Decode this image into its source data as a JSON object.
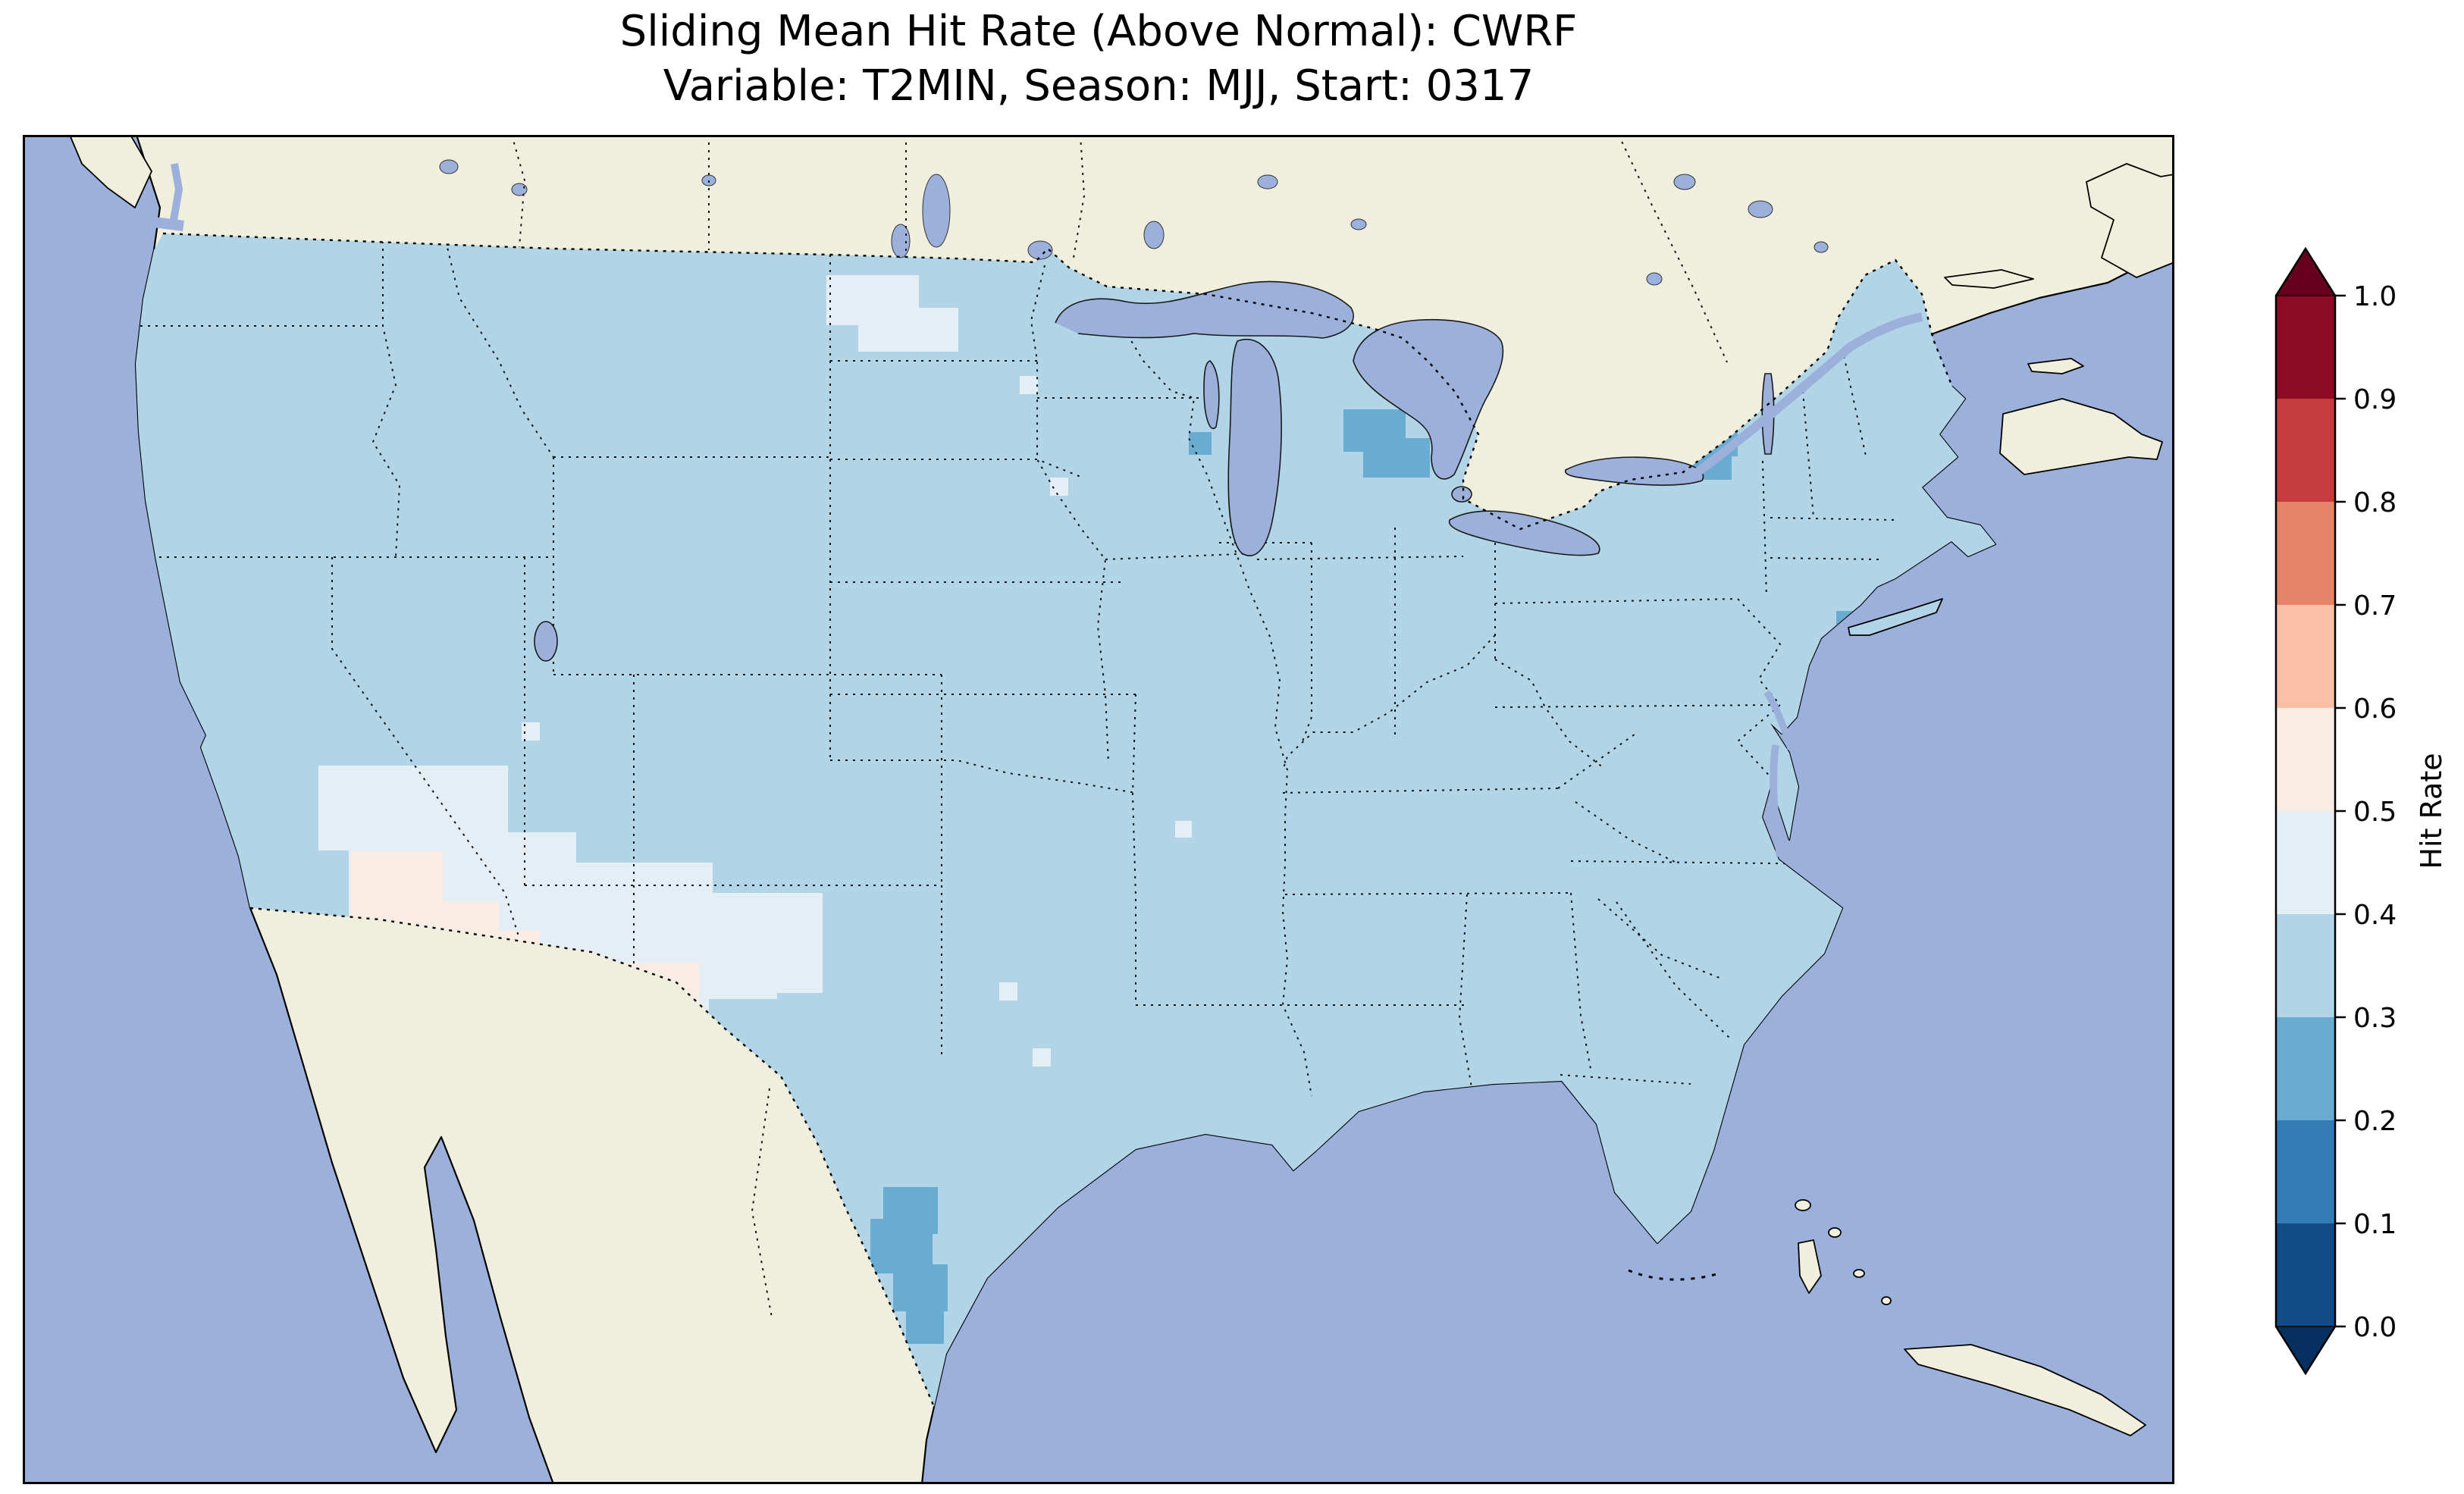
{
  "title": {
    "line1": "Sliding Mean Hit Rate (Above Normal): CWRF",
    "line2": "Variable: T2MIN, Season: MJJ, Start: 0317"
  },
  "colorbar": {
    "label": "Hit Rate",
    "tick_labels": [
      "1.0",
      "0.9",
      "0.8",
      "0.7",
      "0.6",
      "0.5",
      "0.4",
      "0.3",
      "0.2",
      "0.1",
      "0.0"
    ],
    "bin_colors_low_to_high": [
      "#134b87",
      "#327db8",
      "#6aacd1",
      "#b1d5e7",
      "#e4eef4",
      "#f9ece3",
      "#f9c0a5",
      "#e58368",
      "#c43c3c",
      "#8d0c25"
    ],
    "extend_low_color": "#053061",
    "extend_high_color": "#67001f"
  },
  "colors": {
    "ocean": "#9cb0dc",
    "land": "#f0eedc",
    "bin_0_2_0_3": "#6aacd1",
    "bin_0_3_0_4": "#b1d5e7",
    "bin_0_4_0_5": "#e4eef4",
    "bin_0_5_0_6": "#f9ece3"
  },
  "chart_data": {
    "type": "heatmap",
    "title": "Sliding Mean Hit Rate (Above Normal): CWRF",
    "subtitle": "Variable: T2MIN, Season: MJJ, Start: 0317",
    "model": "CWRF",
    "variable": "T2MIN",
    "season": "MJJ",
    "start": "0317",
    "metric": "Hit Rate",
    "map_extent": "Contiguous United States with surrounding Canada, Mexico, Atlantic and Pacific",
    "colormap": "RdBu_r, discrete 10 bins, colorbar extends both ends",
    "value_range": [
      0.0,
      1.0
    ],
    "bin_edges": [
      0.0,
      0.1,
      0.2,
      0.3,
      0.4,
      0.5,
      0.6,
      0.7,
      0.8,
      0.9,
      1.0
    ],
    "dominant_bin": "0.3-0.4",
    "regions": [
      {
        "name": "most of contiguous US",
        "hit_rate_bin": "0.3-0.4",
        "approx_value": 0.35
      },
      {
        "name": "southern Nevada / Arizona / New Mexico / far west Texas patch",
        "hit_rate_bin": "0.4-0.5",
        "approx_value": 0.45
      },
      {
        "name": "whitest cells inside southwest patch (AZ-NM border area)",
        "hit_rate_bin": "0.5-0.6",
        "approx_value": 0.55
      },
      {
        "name": "northern Montana / North Dakota border patch",
        "hit_rate_bin": "0.4-0.5",
        "approx_value": 0.45
      },
      {
        "name": "central Wisconsin single cell",
        "hit_rate_bin": "0.2-0.3",
        "approx_value": 0.25
      },
      {
        "name": "northern lower Michigan cluster",
        "hit_rate_bin": "0.2-0.3",
        "approx_value": 0.25
      },
      {
        "name": "upstate New York (Adirondacks) cluster",
        "hit_rate_bin": "0.2-0.3",
        "approx_value": 0.25
      },
      {
        "name": "south Texas along Rio Grande coast",
        "hit_rate_bin": "0.2-0.3",
        "approx_value": 0.25
      },
      {
        "name": "scattered cells: Minnesota, central Texas, south Florida tip",
        "hit_rate_bin": "0.4-0.5",
        "approx_value": 0.45
      },
      {
        "name": "New York City / Long Island coastal cells",
        "hit_rate_bin": "0.2-0.3",
        "approx_value": 0.25
      }
    ],
    "non_data_areas": {
      "ocean_and_lakes": "unshaded ocean color",
      "canada_mexico_land": "unshaded land color"
    }
  }
}
